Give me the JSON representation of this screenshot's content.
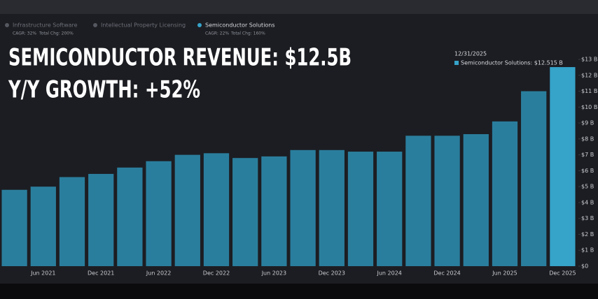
{
  "headline": [
    "SEMICONDUCTOR REVENUE: $12.5B",
    "Y/Y GROWTH: +52%"
  ],
  "legend": [
    {
      "name": "Infrastructure Software",
      "stats": [
        "CAGR: 32%",
        "Total Chg: 200%"
      ]
    },
    {
      "name": "Intellectual Property Licensing"
    }
  ],
  "series_stats": [
    "CAGR: 22%",
    "Total Chg: 160%"
  ],
  "tooltip": {
    "date": "12/31/2025",
    "text": "Semiconductor Solutions: $12.515 B"
  },
  "chart_data": {
    "type": "bar",
    "categories": [
      null,
      "Jun 2021",
      null,
      "Dec 2021",
      null,
      "Jun 2022",
      null,
      "Dec 2022",
      null,
      "Jun 2023",
      null,
      "Dec 2023",
      null,
      "Jun 2024",
      null,
      "Dec 2024",
      null,
      "Jun 2025",
      null,
      "Dec 2025"
    ],
    "series": [
      {
        "name": "Semiconductor Solutions",
        "color": "#2a7e9d",
        "values": [
          4.8,
          5.0,
          5.6,
          5.8,
          6.2,
          6.6,
          7.0,
          7.1,
          6.8,
          6.9,
          7.3,
          7.3,
          7.2,
          7.2,
          8.2,
          8.2,
          8.3,
          9.1,
          11.0,
          12.515
        ]
      }
    ],
    "highlight_color": "#36a3c9",
    "ylim": [
      0,
      13
    ],
    "yticks": [
      {
        "value": 0,
        "label": "$0"
      },
      {
        "value": 1,
        "label": "$1 B"
      },
      {
        "value": 2,
        "label": "$2 B"
      },
      {
        "value": 3,
        "label": "$3 B"
      },
      {
        "value": 4,
        "label": "$4 B"
      },
      {
        "value": 5,
        "label": "$5 B"
      },
      {
        "value": 6,
        "label": "$6 B"
      },
      {
        "value": 7,
        "label": "$7 B"
      },
      {
        "value": 8,
        "label": "$8 B"
      },
      {
        "value": 9,
        "label": "$9 B"
      },
      {
        "value": 10,
        "label": "$10 B"
      },
      {
        "value": 11,
        "label": "$11 B"
      },
      {
        "value": 12,
        "label": "$12 B"
      },
      {
        "value": 13,
        "label": "$13 B"
      }
    ]
  }
}
